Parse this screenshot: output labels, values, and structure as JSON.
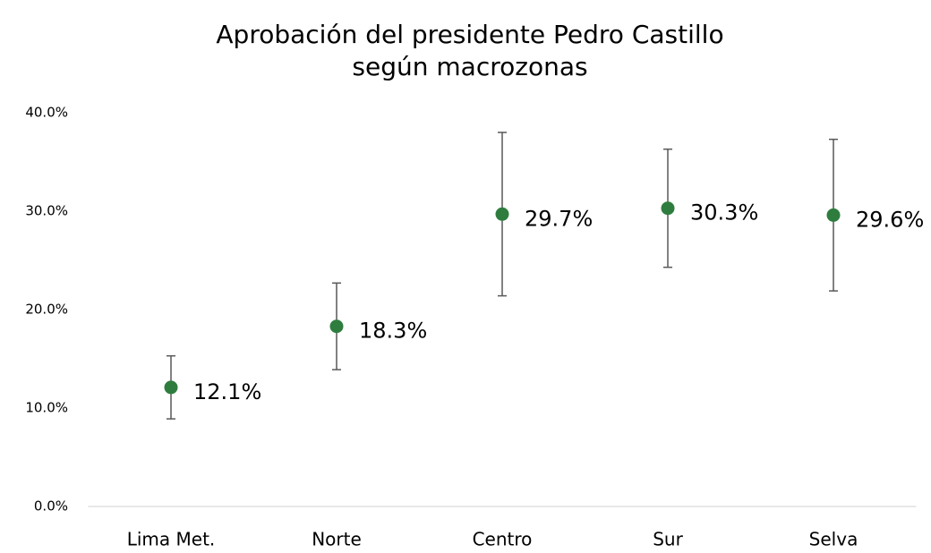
{
  "chart_data": {
    "type": "errorbar_point",
    "title": [
      "Aprobación del presidente Pedro Castillo",
      "según macrozonas"
    ],
    "categories": [
      "Lima Met.",
      "Norte",
      "Centro",
      "Sur",
      "Selva"
    ],
    "values": [
      12.1,
      18.3,
      29.7,
      30.3,
      29.6
    ],
    "value_labels": [
      "12.1%",
      "18.3%",
      "29.7%",
      "30.3%",
      "29.6%"
    ],
    "errors": [
      3.2,
      4.4,
      8.3,
      6.0,
      7.7
    ],
    "color": "#2e7d3e",
    "error_color": "#595959",
    "ylim": [
      0,
      40
    ],
    "yticks": [
      {
        "value": 0,
        "label": "0.0%"
      },
      {
        "value": 10,
        "label": "10.0%"
      },
      {
        "value": 20,
        "label": "20.0%"
      },
      {
        "value": 30,
        "label": "30.0%"
      },
      {
        "value": 40,
        "label": "40.0%"
      }
    ],
    "grid": false
  }
}
